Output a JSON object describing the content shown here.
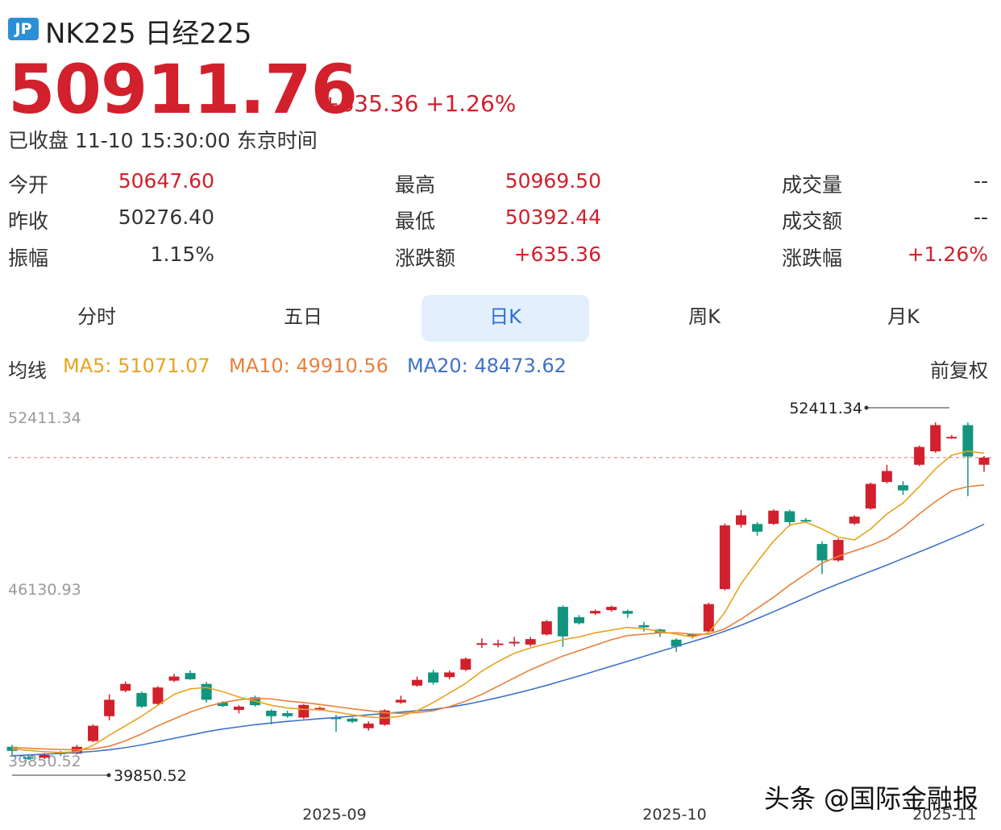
{
  "header": {
    "badge": "JP",
    "title": "NK225 日经225"
  },
  "quote": {
    "price": "50911.76",
    "change": "+635.36",
    "change_pct": "+1.26%",
    "status": "已收盘 11-10 15:30:00 东京时间"
  },
  "stats": [
    {
      "label": "今开",
      "value": "50647.60",
      "color": "red"
    },
    {
      "label": "最高",
      "value": "50969.50",
      "color": "red"
    },
    {
      "label": "成交量",
      "value": "--",
      "color": "dark"
    },
    {
      "label": "昨收",
      "value": "50276.40",
      "color": "dark"
    },
    {
      "label": "最低",
      "value": "50392.44",
      "color": "red"
    },
    {
      "label": "成交额",
      "value": "--",
      "color": "dark"
    },
    {
      "label": "振幅",
      "value": "1.15%",
      "color": "dark"
    },
    {
      "label": "涨跌额",
      "value": "+635.36",
      "color": "red"
    },
    {
      "label": "涨跌幅",
      "value": "+1.26%",
      "color": "red"
    }
  ],
  "tabs": [
    {
      "label": "分时",
      "active": false
    },
    {
      "label": "五日",
      "active": false
    },
    {
      "label": "日K",
      "active": true
    },
    {
      "label": "周K",
      "active": false
    },
    {
      "label": "月K",
      "active": false
    }
  ],
  "ma_bar": {
    "label": "均线",
    "ma5": "MA5: 51071.07",
    "ma10": "MA10: 49910.56",
    "ma20": "MA20: 48473.62",
    "adjust": "前复权"
  },
  "colors": {
    "up": "#d2202c",
    "down": "#12947e",
    "ma5": "#e8a31d",
    "ma10": "#e9803b",
    "ma20": "#3f72c9",
    "active_tab_bg": "#e3effc"
  },
  "chart_data": {
    "type": "candlestick",
    "y_axis_labels": [
      "52411.34",
      "46130.93",
      "39850.52"
    ],
    "ylim": [
      39850.52,
      52411.34
    ],
    "x_tick_labels": [
      "2025-09",
      "2025-10",
      "2025-11"
    ],
    "max_marker": "52411.34",
    "min_marker": "39850.52",
    "candles": [
      {
        "o": 40330,
        "c": 40180,
        "h": 40400,
        "l": 40000
      },
      {
        "o": 39950,
        "c": 39910,
        "h": 40050,
        "l": 39850
      },
      {
        "o": 39930,
        "c": 40030,
        "h": 40100,
        "l": 39880
      },
      {
        "o": 40120,
        "c": 40070,
        "h": 40180,
        "l": 40000
      },
      {
        "o": 40080,
        "c": 40330,
        "h": 40400,
        "l": 40050
      },
      {
        "o": 40540,
        "c": 41100,
        "h": 41150,
        "l": 40500
      },
      {
        "o": 41450,
        "c": 42050,
        "h": 42250,
        "l": 41300
      },
      {
        "o": 42380,
        "c": 42630,
        "h": 42720,
        "l": 42330
      },
      {
        "o": 42300,
        "c": 41800,
        "h": 42350,
        "l": 41750
      },
      {
        "o": 41900,
        "c": 42500,
        "h": 42550,
        "l": 41850
      },
      {
        "o": 42750,
        "c": 42900,
        "h": 43000,
        "l": 42700
      },
      {
        "o": 43030,
        "c": 42800,
        "h": 43120,
        "l": 42780
      },
      {
        "o": 42630,
        "c": 42050,
        "h": 42700,
        "l": 41950
      },
      {
        "o": 41950,
        "c": 41820,
        "h": 42000,
        "l": 41780
      },
      {
        "o": 41680,
        "c": 41800,
        "h": 41850,
        "l": 41550
      },
      {
        "o": 42140,
        "c": 41850,
        "h": 42200,
        "l": 41800
      },
      {
        "o": 41650,
        "c": 41450,
        "h": 41700,
        "l": 41150
      },
      {
        "o": 41560,
        "c": 41450,
        "h": 41650,
        "l": 41400
      },
      {
        "o": 41400,
        "c": 41860,
        "h": 41900,
        "l": 41350
      },
      {
        "o": 41740,
        "c": 41750,
        "h": 41800,
        "l": 41700
      },
      {
        "o": 41400,
        "c": 41380,
        "h": 41500,
        "l": 40880
      },
      {
        "o": 41360,
        "c": 41250,
        "h": 41400,
        "l": 41200
      },
      {
        "o": 41010,
        "c": 41180,
        "h": 41260,
        "l": 40920
      },
      {
        "o": 41140,
        "c": 41660,
        "h": 41700,
        "l": 41100
      },
      {
        "o": 41950,
        "c": 42050,
        "h": 42200,
        "l": 41900
      },
      {
        "o": 42570,
        "c": 42780,
        "h": 42900,
        "l": 42530
      },
      {
        "o": 43050,
        "c": 42680,
        "h": 43150,
        "l": 42600
      },
      {
        "o": 42880,
        "c": 43050,
        "h": 43120,
        "l": 42800
      },
      {
        "o": 43150,
        "c": 43550,
        "h": 43600,
        "l": 43100
      },
      {
        "o": 44120,
        "c": 44120,
        "h": 44300,
        "l": 43950
      },
      {
        "o": 44110,
        "c": 44110,
        "h": 44250,
        "l": 43970
      },
      {
        "o": 44170,
        "c": 44170,
        "h": 44350,
        "l": 44010
      },
      {
        "o": 44070,
        "c": 44270,
        "h": 44350,
        "l": 44000
      },
      {
        "o": 44440,
        "c": 44920,
        "h": 44970,
        "l": 44400
      },
      {
        "o": 45450,
        "c": 44370,
        "h": 45500,
        "l": 43990
      },
      {
        "o": 45070,
        "c": 44850,
        "h": 45150,
        "l": 44800
      },
      {
        "o": 45210,
        "c": 45300,
        "h": 45350,
        "l": 45150
      },
      {
        "o": 45330,
        "c": 45450,
        "h": 45500,
        "l": 45280
      },
      {
        "o": 45300,
        "c": 45200,
        "h": 45350,
        "l": 45050
      },
      {
        "o": 44780,
        "c": 44700,
        "h": 44900,
        "l": 44550
      },
      {
        "o": 44620,
        "c": 44500,
        "h": 44650,
        "l": 44350
      },
      {
        "o": 44250,
        "c": 44000,
        "h": 44300,
        "l": 43800
      },
      {
        "o": 44450,
        "c": 44400,
        "h": 44480,
        "l": 44300
      },
      {
        "o": 44550,
        "c": 45550,
        "h": 45600,
        "l": 44500
      },
      {
        "o": 46100,
        "c": 48430,
        "h": 48500,
        "l": 46050
      },
      {
        "o": 48450,
        "c": 48800,
        "h": 49000,
        "l": 48350
      },
      {
        "o": 48480,
        "c": 48200,
        "h": 48550,
        "l": 48050
      },
      {
        "o": 48490,
        "c": 48970,
        "h": 49020,
        "l": 48440
      },
      {
        "o": 48950,
        "c": 48550,
        "h": 49000,
        "l": 48400
      },
      {
        "o": 48630,
        "c": 48600,
        "h": 48700,
        "l": 48550
      },
      {
        "o": 47750,
        "c": 47150,
        "h": 47850,
        "l": 46650
      },
      {
        "o": 47150,
        "c": 47900,
        "h": 47950,
        "l": 47100
      },
      {
        "o": 48500,
        "c": 48750,
        "h": 48800,
        "l": 48450
      },
      {
        "o": 49050,
        "c": 49950,
        "h": 50000,
        "l": 49000
      },
      {
        "o": 50020,
        "c": 50420,
        "h": 50650,
        "l": 49970
      },
      {
        "o": 49900,
        "c": 49710,
        "h": 50050,
        "l": 49550
      },
      {
        "o": 50650,
        "c": 51300,
        "h": 51350,
        "l": 50600
      },
      {
        "o": 51140,
        "c": 52100,
        "h": 52200,
        "l": 51090
      },
      {
        "o": 51670,
        "c": 51670,
        "h": 51740,
        "l": 51600
      },
      {
        "o": 52100,
        "c": 50950,
        "h": 52200,
        "l": 49500
      },
      {
        "o": 50650,
        "c": 50910,
        "h": 50970,
        "l": 50390
      }
    ],
    "ma5_values": [
      40250,
      40200,
      40150,
      40120,
      40150,
      40380,
      40750,
      41100,
      41450,
      41850,
      42250,
      42450,
      42500,
      42350,
      42150,
      42000,
      41850,
      41750,
      41700,
      41680,
      41600,
      41500,
      41420,
      41380,
      41450,
      41650,
      41950,
      42300,
      42650,
      43100,
      43450,
      43750,
      43950,
      44100,
      44250,
      44350,
      44500,
      44600,
      44700,
      44650,
      44550,
      44450,
      44350,
      44500,
      45250,
      46300,
      47100,
      47850,
      48450,
      48550,
      48300,
      48000,
      47900,
      48300,
      48850,
      49250,
      49850,
      50500,
      51000,
      51150,
      51071.07
    ],
    "ma10_values": [
      40300,
      40280,
      40250,
      40230,
      40220,
      40250,
      40350,
      40550,
      40800,
      41100,
      41350,
      41600,
      41800,
      41950,
      42050,
      42100,
      42080,
      42000,
      41950,
      41880,
      41800,
      41720,
      41650,
      41580,
      41550,
      41580,
      41650,
      41800,
      42000,
      42250,
      42550,
      42850,
      43150,
      43400,
      43650,
      43850,
      44050,
      44250,
      44400,
      44450,
      44500,
      44500,
      44450,
      44450,
      44650,
      45000,
      45400,
      45800,
      46250,
      46650,
      47050,
      47300,
      47500,
      47700,
      47950,
      48350,
      48850,
      49300,
      49700,
      49850,
      49910.56
    ],
    "ma20_values": [
      40000,
      40030,
      40060,
      40090,
      40120,
      40160,
      40220,
      40300,
      40400,
      40520,
      40640,
      40760,
      40880,
      40980,
      41060,
      41140,
      41200,
      41260,
      41310,
      41360,
      41400,
      41450,
      41500,
      41550,
      41600,
      41650,
      41700,
      41780,
      41880,
      42000,
      42130,
      42270,
      42420,
      42580,
      42750,
      42920,
      43100,
      43280,
      43460,
      43640,
      43820,
      44000,
      44180,
      44360,
      44560,
      44780,
      45020,
      45270,
      45530,
      45790,
      46050,
      46290,
      46520,
      46750,
      46980,
      47220,
      47460,
      47700,
      47950,
      48200,
      48473.62
    ]
  },
  "watermark": "头条 @国际金融报"
}
